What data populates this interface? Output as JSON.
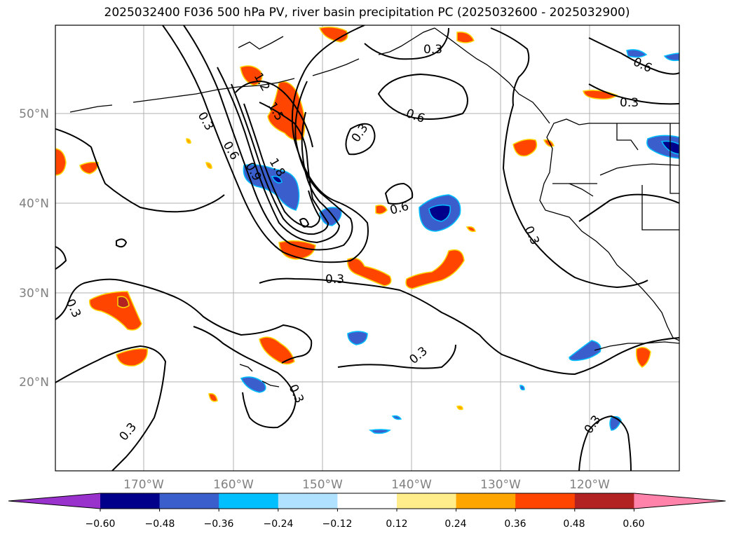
{
  "title": "2025032400 F036 500 hPa PV, river basin precipitation PC (2025032600 - 2025032900)",
  "latitude_labels": [
    "50°N",
    "40°N",
    "30°N",
    "20°N"
  ],
  "longitude_labels": [
    "170°W",
    "160°W",
    "150°W",
    "140°W",
    "130°W",
    "120°W"
  ],
  "contour_labels": [
    "0.3",
    "0.6",
    "1.2",
    "1.5",
    "1.8",
    "0.9",
    "0.6",
    "0.3",
    "0.3",
    "0.6",
    "0.3",
    "0.6",
    "0.3",
    "0.3",
    "0.3",
    "0.3",
    "0.3",
    "0.3",
    "0.3"
  ],
  "colorbar": {
    "tick_labels": [
      "−0.60",
      "−0.48",
      "−0.36",
      "−0.24",
      "−0.12",
      "0.12",
      "0.24",
      "0.36",
      "0.48",
      "0.60"
    ],
    "colors": [
      "#9932cc",
      "#00008b",
      "#3a5fcd",
      "#00bfff",
      "#b0e2ff",
      "#ffffff",
      "#ffec8b",
      "#ffa500",
      "#ff4500",
      "#b22222",
      "#ff82ab"
    ]
  }
}
